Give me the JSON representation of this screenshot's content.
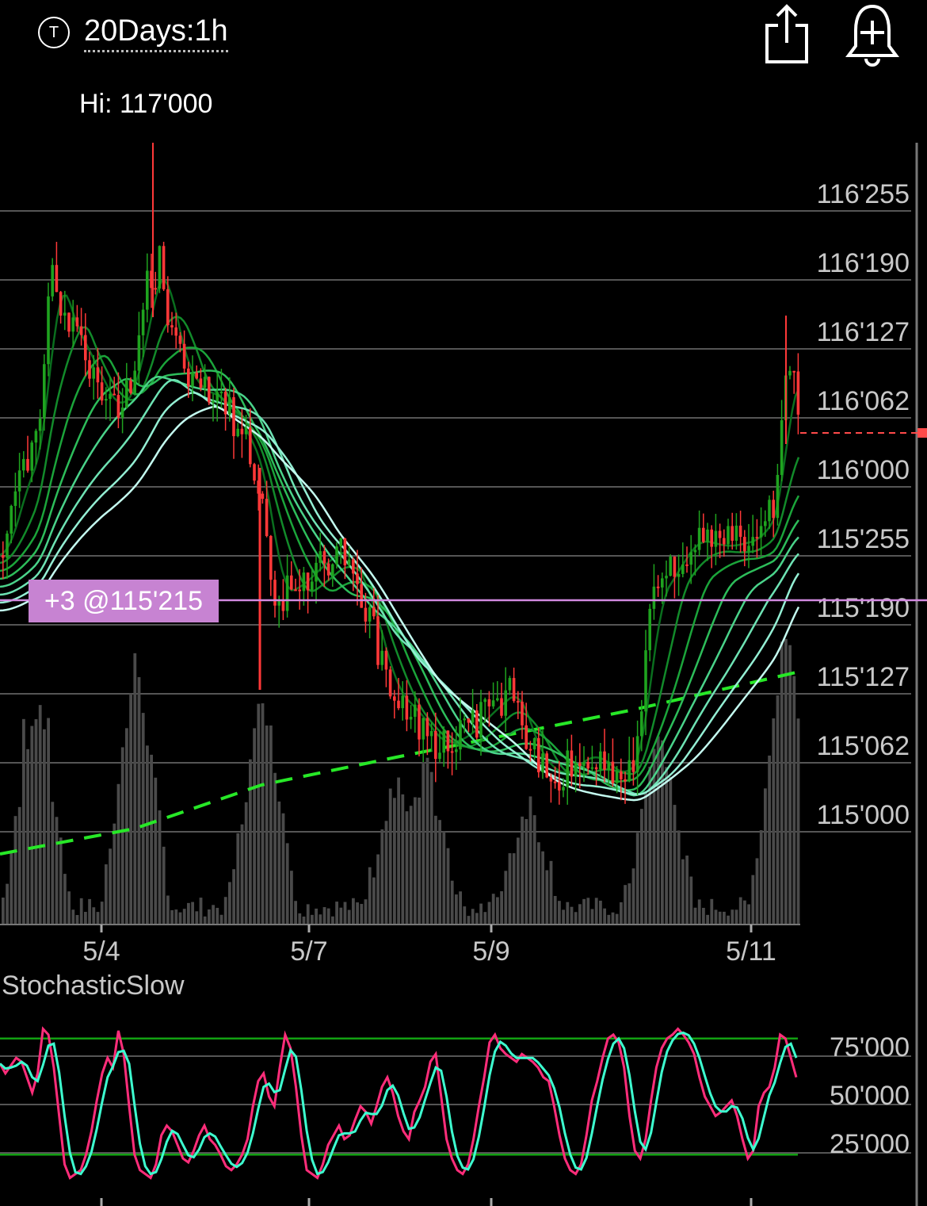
{
  "header": {
    "symbol_icon": "T",
    "timeframe": "20Days:1h",
    "share_icon": "share-icon",
    "alert_icon": "alert-plus-icon",
    "hi_label": "Hi: 117'000"
  },
  "colors": {
    "background": "#000000",
    "up": "#1fa31f",
    "down": "#ff3838",
    "volume": "#4a4a4a",
    "grid": "#555555",
    "trade_line": "#d28ae0",
    "trade_label_bg": "#c783d2",
    "trend_line": "#27e827",
    "stoch_k": "#ff2d7a",
    "stoch_d": "#3dffd0"
  },
  "chart_data": [
    {
      "type": "candlestick",
      "price_axis": {
        "tick_labels": [
          "116'255",
          "116'190",
          "116'127",
          "116'062",
          "116'000",
          "115'255",
          "115'190",
          "115'127",
          "115'062",
          "115'000"
        ],
        "ylim_labels": [
          "115'000",
          "116'255"
        ]
      },
      "x_tick_labels": [
        "5/4",
        "5/7",
        "5/9",
        "5/11"
      ],
      "high_label": "Hi: 117'000",
      "last_price_marker": "116'032",
      "position": {
        "label": "+3 @115'215",
        "price": "115'215"
      },
      "overlays": [
        "8 moving averages (dark green to light cyan)",
        "dashed green trendline",
        "volume bars"
      ],
      "grid": true
    },
    {
      "type": "line",
      "title": "StochasticSlow",
      "y_tick_labels": [
        "75'000",
        "50'000",
        "25'000"
      ],
      "ylim": [
        0,
        100
      ],
      "levels": [
        80,
        20
      ],
      "k_series": [
        67,
        62,
        66,
        70,
        68,
        60,
        52,
        62,
        85,
        82,
        65,
        40,
        15,
        8,
        10,
        12,
        20,
        32,
        48,
        62,
        70,
        65,
        84,
        72,
        45,
        20,
        12,
        10,
        8,
        15,
        30,
        35,
        32,
        25,
        18,
        16,
        22,
        30,
        35,
        28,
        25,
        20,
        14,
        12,
        15,
        20,
        28,
        45,
        58,
        62,
        50,
        45,
        65,
        82,
        75,
        55,
        30,
        12,
        10,
        8,
        15,
        25,
        30,
        35,
        28,
        30,
        38,
        45,
        42,
        36,
        45,
        55,
        60,
        52,
        40,
        32,
        28,
        42,
        48,
        55,
        68,
        72,
        50,
        28,
        18,
        12,
        10,
        15,
        28,
        45,
        60,
        78,
        82,
        75,
        72,
        70,
        68,
        72,
        70,
        68,
        65,
        60,
        58,
        45,
        30,
        18,
        12,
        10,
        15,
        30,
        48,
        58,
        70,
        80,
        82,
        78,
        65,
        40,
        22,
        18,
        28,
        48,
        65,
        75,
        80,
        82,
        85,
        82,
        78,
        72,
        60,
        50,
        45,
        40,
        42,
        45,
        48,
        40,
        28,
        18,
        22,
        45,
        52,
        55,
        65,
        82,
        80,
        70,
        60
      ]
    }
  ],
  "stochastic": {
    "title": "StochasticSlow"
  }
}
